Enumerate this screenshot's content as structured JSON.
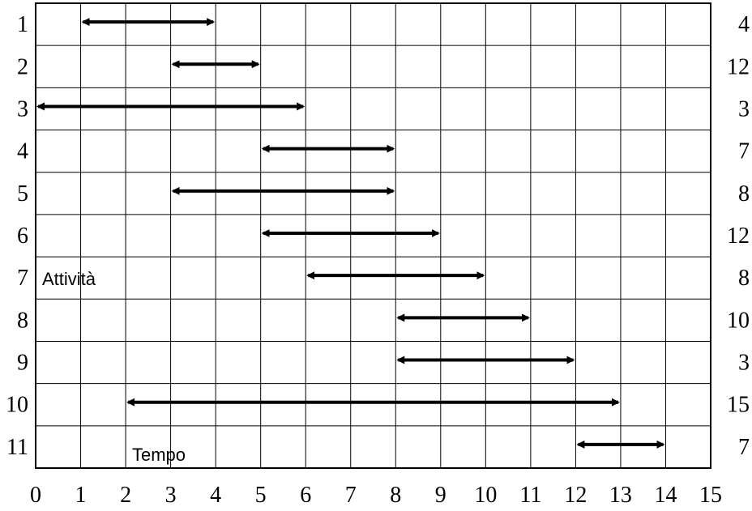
{
  "chart_data": {
    "type": "gantt",
    "xlabel": "Tempo",
    "ylabel": "Attività",
    "xlim": [
      0,
      15
    ],
    "x_ticks": [
      "0",
      "1",
      "2",
      "3",
      "4",
      "5",
      "6",
      "7",
      "8",
      "9",
      "10",
      "11",
      "12",
      "13",
      "14",
      "15"
    ],
    "grid": true,
    "activities": [
      {
        "label": "1",
        "start": 1,
        "end": 4,
        "value": "4"
      },
      {
        "label": "2",
        "start": 3,
        "end": 5,
        "value": "12"
      },
      {
        "label": "3",
        "start": 0,
        "end": 6,
        "value": "3"
      },
      {
        "label": "4",
        "start": 5,
        "end": 8,
        "value": "7"
      },
      {
        "label": "5",
        "start": 3,
        "end": 8,
        "value": "8"
      },
      {
        "label": "6",
        "start": 5,
        "end": 9,
        "value": "12"
      },
      {
        "label": "7",
        "start": 6,
        "end": 10,
        "value": "8"
      },
      {
        "label": "8",
        "start": 8,
        "end": 11,
        "value": "10"
      },
      {
        "label": "9",
        "start": 8,
        "end": 12,
        "value": "3"
      },
      {
        "label": "10",
        "start": 2,
        "end": 13,
        "value": "15"
      },
      {
        "label": "11",
        "start": 12,
        "end": 14,
        "value": "7"
      }
    ]
  }
}
